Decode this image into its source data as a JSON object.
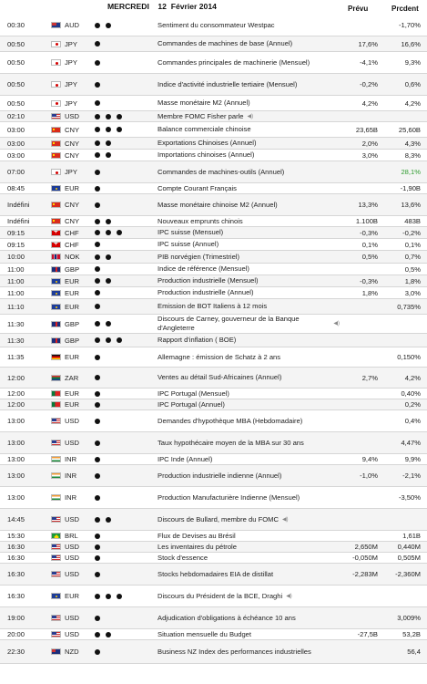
{
  "header": {
    "date": "MERCREDI    12  Février 2014",
    "col_prevu": "Prévu",
    "col_precedent": "Prcdent"
  },
  "rows": [
    {
      "time": "00:30",
      "flag": "aus",
      "currency": "AUD",
      "importance": 2,
      "event": "Sentiment du consommateur Westpac",
      "prevu": "",
      "precedent": "-1,70%"
    },
    {
      "time": "00:50",
      "flag": "jp",
      "currency": "JPY",
      "importance": 1,
      "event": "Commandes de machines de base (Annuel)",
      "prevu": "17,6%",
      "precedent": "16,6%"
    },
    {
      "time": "00:50",
      "flag": "jp",
      "currency": "JPY",
      "importance": 1,
      "event": "Commandes principales de machinerie (Mensuel)",
      "prevu": "-4,1%",
      "precedent": "9,3%"
    },
    {
      "time": "00:50",
      "flag": "jp",
      "currency": "JPY",
      "importance": 1,
      "event": "Indice d'activité industrielle tertiaire (Mensuel)",
      "prevu": "-0,2%",
      "precedent": "0,6%"
    },
    {
      "time": "00:50",
      "flag": "jp",
      "currency": "JPY",
      "importance": 1,
      "event": "Masse monétaire M2 (Annuel)",
      "prevu": "4,2%",
      "precedent": "4,2%"
    },
    {
      "time": "02:10",
      "flag": "us",
      "currency": "USD",
      "importance": 3,
      "event": "Membre FOMC Fisher parle",
      "speaker": true,
      "prevu": "",
      "precedent": ""
    },
    {
      "time": "03:00",
      "flag": "cn",
      "currency": "CNY",
      "importance": 3,
      "event": "Balance commerciale chinoise",
      "prevu": "23,65B",
      "precedent": "25,60B"
    },
    {
      "time": "03:00",
      "flag": "cn",
      "currency": "CNY",
      "importance": 2,
      "event": "Exportations Chinoises (Annuel)",
      "prevu": "2,0%",
      "precedent": "4,3%"
    },
    {
      "time": "03:00",
      "flag": "cn",
      "currency": "CNY",
      "importance": 2,
      "event": "Importations chinoises (Annuel)",
      "prevu": "3,0%",
      "precedent": "8,3%"
    },
    {
      "time": "07:00",
      "flag": "jp",
      "currency": "JPY",
      "importance": 1,
      "event": "Commandes de machines-outils (Annuel)",
      "prevu": "",
      "precedent": "28,1%",
      "precedent_color": "green"
    },
    {
      "time": "08:45",
      "flag": "eu",
      "currency": "EUR",
      "importance": 1,
      "event": "Compte Courant Français",
      "prevu": "",
      "precedent": "-1,90B"
    },
    {
      "time": "Indéfini",
      "flag": "cn",
      "currency": "CNY",
      "importance": 1,
      "event": "Masse monétaire chinoise M2 (Annuel)",
      "prevu": "13,3%",
      "precedent": "13,6%"
    },
    {
      "time": "Indéfini",
      "flag": "cn",
      "currency": "CNY",
      "importance": 2,
      "event": "Nouveaux emprunts chinois",
      "prevu": "1.100B",
      "precedent": "483B"
    },
    {
      "time": "09:15",
      "flag": "ch",
      "currency": "CHF",
      "importance": 3,
      "event": "IPC suisse (Mensuel)",
      "prevu": "-0,3%",
      "precedent": "-0,2%"
    },
    {
      "time": "09:15",
      "flag": "ch",
      "currency": "CHF",
      "importance": 1,
      "event": "IPC suisse (Annuel)",
      "prevu": "0,1%",
      "precedent": "0,1%"
    },
    {
      "time": "10:00",
      "flag": "no",
      "currency": "NOK",
      "importance": 2,
      "event": "PIB norvégien (Trimestriel)",
      "prevu": "0,5%",
      "precedent": "0,7%"
    },
    {
      "time": "11:00",
      "flag": "gb",
      "currency": "GBP",
      "importance": 1,
      "event": "Indice de référence (Mensuel)",
      "prevu": "",
      "precedent": "0,5%"
    },
    {
      "time": "11:00",
      "flag": "eu",
      "currency": "EUR",
      "importance": 2,
      "event": "Production industrielle (Mensuel)",
      "prevu": "-0,3%",
      "precedent": "1,8%"
    },
    {
      "time": "11:00",
      "flag": "eu",
      "currency": "EUR",
      "importance": 1,
      "event": "Production industrielle (Annuel)",
      "prevu": "1,8%",
      "precedent": "3,0%"
    },
    {
      "time": "11:10",
      "flag": "eu",
      "currency": "EUR",
      "importance": 1,
      "event": "Emission de BOT Italiens à 12 mois",
      "prevu": "",
      "precedent": "0,735%"
    },
    {
      "time": "11:30",
      "flag": "gb",
      "currency": "GBP",
      "importance": 2,
      "event": "Discours de Carney, gouverneur de la Banque d'Angleterre",
      "speaker": true,
      "prevu": "",
      "precedent": ""
    },
    {
      "time": "11:30",
      "flag": "gb",
      "currency": "GBP",
      "importance": 3,
      "event": "Rapport d'inflation ( BOE)",
      "prevu": "",
      "precedent": ""
    },
    {
      "time": "11:35",
      "flag": "de",
      "currency": "EUR",
      "importance": 1,
      "event": "Allemagne : émission de Schatz à 2 ans",
      "prevu": "",
      "precedent": "0,150%"
    },
    {
      "time": "12:00",
      "flag": "za",
      "currency": "ZAR",
      "importance": 1,
      "event": "Ventes au détail Sud-Africaines (Annuel)",
      "prevu": "2,7%",
      "precedent": "4,2%"
    },
    {
      "time": "12:00",
      "flag": "pt",
      "currency": "EUR",
      "importance": 1,
      "event": "IPC Portugal (Mensuel)",
      "prevu": "",
      "precedent": "0,40%"
    },
    {
      "time": "12:00",
      "flag": "pt",
      "currency": "EUR",
      "importance": 1,
      "event": "IPC Portugal (Annuel)",
      "prevu": "",
      "precedent": "0,2%"
    },
    {
      "time": "13:00",
      "flag": "us",
      "currency": "USD",
      "importance": 1,
      "event": "Demandes d'hypothèque MBA (Hebdomadaire)",
      "prevu": "",
      "precedent": "0,4%"
    },
    {
      "time": "13:00",
      "flag": "us",
      "currency": "USD",
      "importance": 1,
      "event": "Taux hypothécaire moyen de la MBA sur 30 ans",
      "prevu": "",
      "precedent": "4,47%"
    },
    {
      "time": "13:00",
      "flag": "in",
      "currency": "INR",
      "importance": 1,
      "event": "IPC Inde (Annuel)",
      "prevu": "9,4%",
      "precedent": "9,9%"
    },
    {
      "time": "13:00",
      "flag": "in",
      "currency": "INR",
      "importance": 1,
      "event": "Production industrielle indienne (Annuel)",
      "prevu": "-1,0%",
      "precedent": "-2,1%"
    },
    {
      "time": "13:00",
      "flag": "in",
      "currency": "INR",
      "importance": 1,
      "event": "Production Manufacturière Indienne (Mensuel)",
      "prevu": "",
      "precedent": "-3,50%"
    },
    {
      "time": "14:45",
      "flag": "us",
      "currency": "USD",
      "importance": 2,
      "event": "Discours de Bullard, membre du FOMC",
      "speaker": true,
      "prevu": "",
      "precedent": ""
    },
    {
      "time": "15:30",
      "flag": "br",
      "currency": "BRL",
      "importance": 1,
      "event": "Flux de Devises au Brésil",
      "prevu": "",
      "precedent": "1,61B"
    },
    {
      "time": "16:30",
      "flag": "us",
      "currency": "USD",
      "importance": 1,
      "event": "Les inventaires du pétrole",
      "prevu": "2,650M",
      "precedent": "0,440M"
    },
    {
      "time": "16:30",
      "flag": "us",
      "currency": "USD",
      "importance": 1,
      "event": "Stock d'essence",
      "prevu": "-0,050M",
      "precedent": "0,505M"
    },
    {
      "time": "16:30",
      "flag": "us",
      "currency": "USD",
      "importance": 1,
      "event": "Stocks hebdomadaires EIA de distillat",
      "prevu": "-2,283M",
      "precedent": "-2,360M"
    },
    {
      "time": "16:30",
      "flag": "eu",
      "currency": "EUR",
      "importance": 3,
      "event": "Discours du Président de la BCE, Draghi",
      "speaker": true,
      "prevu": "",
      "precedent": ""
    },
    {
      "time": "19:00",
      "flag": "us",
      "currency": "USD",
      "importance": 1,
      "event": "Adjudication d'obligations à échéance 10 ans",
      "prevu": "",
      "precedent": "3,009%"
    },
    {
      "time": "20:00",
      "flag": "us",
      "currency": "USD",
      "importance": 2,
      "event": "Situation mensuelle du Budget",
      "prevu": "-27,5B",
      "precedent": "53,2B"
    },
    {
      "time": "22:30",
      "flag": "nz",
      "currency": "NZD",
      "importance": 1,
      "event": "Business NZ Index des performances industrielles",
      "prevu": "",
      "precedent": "56,4"
    }
  ]
}
